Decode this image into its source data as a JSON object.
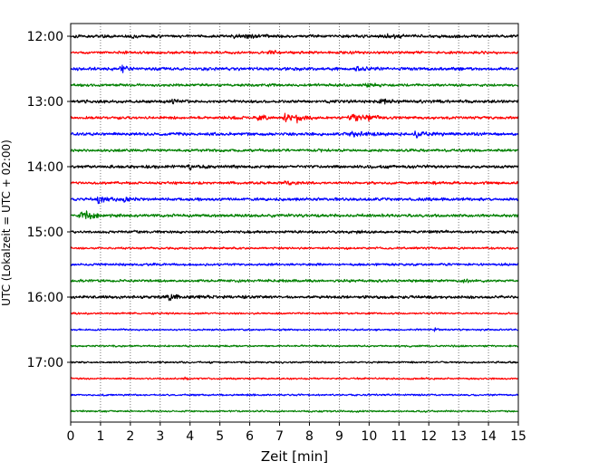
{
  "chart_data": {
    "type": "line",
    "subtype": "helicorder",
    "xlabel": "Zeit  [min]",
    "ylabel": "UTC (Lokalzeit = UTC + 02:00)",
    "xlim": [
      0,
      15
    ],
    "x_ticks": [
      "0",
      "1",
      "2",
      "3",
      "4",
      "5",
      "6",
      "7",
      "8",
      "9",
      "10",
      "11",
      "12",
      "13",
      "14",
      "15"
    ],
    "y_ticks": [
      "12:00",
      "13:00",
      "14:00",
      "15:00",
      "16:00",
      "17:00"
    ],
    "grid": "vertical dotted at each minute",
    "colors": [
      "#000000",
      "#ff0000",
      "#0000ff",
      "#008000"
    ],
    "trace_interval_minutes": 15,
    "traces": [
      {
        "start": "12:00",
        "color": "#000000",
        "noise": 1.0,
        "events": [
          {
            "t": 2.0,
            "amp": 1.5,
            "dur": 0.2
          },
          {
            "t": 5.6,
            "amp": 2.0,
            "dur": 0.5
          },
          {
            "t": 10.6,
            "amp": 1.5,
            "dur": 0.4
          }
        ]
      },
      {
        "start": "12:15",
        "color": "#ff0000",
        "noise": 0.9,
        "events": [
          {
            "t": 6.6,
            "amp": 1.3,
            "dur": 0.3
          }
        ]
      },
      {
        "start": "12:30",
        "color": "#0000ff",
        "noise": 1.0,
        "events": [
          {
            "t": 1.7,
            "amp": 2.2,
            "dur": 0.3
          },
          {
            "t": 9.6,
            "amp": 1.3,
            "dur": 0.3
          }
        ]
      },
      {
        "start": "12:45",
        "color": "#008000",
        "noise": 0.9,
        "events": [
          {
            "t": 10.0,
            "amp": 1.2,
            "dur": 0.3
          }
        ]
      },
      {
        "start": "13:00",
        "color": "#000000",
        "noise": 1.0,
        "events": [
          {
            "t": 10.4,
            "amp": 2.0,
            "dur": 0.3
          },
          {
            "t": 3.4,
            "amp": 1.3,
            "dur": 0.3
          }
        ]
      },
      {
        "start": "13:15",
        "color": "#ff0000",
        "noise": 0.9,
        "events": [
          {
            "t": 6.3,
            "amp": 2.5,
            "dur": 0.25
          },
          {
            "t": 7.2,
            "amp": 3.5,
            "dur": 0.35
          },
          {
            "t": 7.6,
            "amp": 3.0,
            "dur": 0.2
          },
          {
            "t": 9.4,
            "amp": 3.5,
            "dur": 0.35
          },
          {
            "t": 10.0,
            "amp": 2.2,
            "dur": 0.3
          }
        ]
      },
      {
        "start": "13:30",
        "color": "#0000ff",
        "noise": 1.0,
        "events": [
          {
            "t": 9.5,
            "amp": 1.8,
            "dur": 0.5
          },
          {
            "t": 11.6,
            "amp": 1.8,
            "dur": 0.5
          }
        ]
      },
      {
        "start": "13:45",
        "color": "#008000",
        "noise": 0.9,
        "events": []
      },
      {
        "start": "14:00",
        "color": "#000000",
        "noise": 1.0,
        "events": [
          {
            "t": 4.0,
            "amp": 1.3,
            "dur": 0.3
          }
        ]
      },
      {
        "start": "14:15",
        "color": "#ff0000",
        "noise": 0.9,
        "events": [
          {
            "t": 7.2,
            "amp": 1.2,
            "dur": 0.3
          }
        ]
      },
      {
        "start": "14:30",
        "color": "#0000ff",
        "noise": 1.0,
        "events": [
          {
            "t": 0.9,
            "amp": 3.5,
            "dur": 0.35
          },
          {
            "t": 1.8,
            "amp": 1.4,
            "dur": 0.3
          }
        ]
      },
      {
        "start": "14:45",
        "color": "#008000",
        "noise": 1.0,
        "events": [
          {
            "t": 0.4,
            "amp": 4.0,
            "dur": 0.45
          }
        ]
      },
      {
        "start": "15:00",
        "color": "#000000",
        "noise": 0.9,
        "events": [
          {
            "t": 9.6,
            "amp": 2.0,
            "dur": 0.15
          }
        ]
      },
      {
        "start": "15:15",
        "color": "#ff0000",
        "noise": 0.7,
        "events": []
      },
      {
        "start": "15:30",
        "color": "#0000ff",
        "noise": 0.8,
        "events": []
      },
      {
        "start": "15:45",
        "color": "#008000",
        "noise": 0.9,
        "events": [
          {
            "t": 13.2,
            "amp": 1.3,
            "dur": 0.3
          }
        ]
      },
      {
        "start": "16:00",
        "color": "#000000",
        "noise": 1.0,
        "events": [
          {
            "t": 3.3,
            "amp": 1.6,
            "dur": 0.6
          }
        ]
      },
      {
        "start": "16:15",
        "color": "#ff0000",
        "noise": 0.6,
        "events": []
      },
      {
        "start": "16:30",
        "color": "#0000ff",
        "noise": 0.6,
        "events": [
          {
            "t": 12.2,
            "amp": 1.5,
            "dur": 0.1
          }
        ]
      },
      {
        "start": "16:45",
        "color": "#008000",
        "noise": 0.6,
        "events": []
      },
      {
        "start": "17:00",
        "color": "#000000",
        "noise": 0.6,
        "events": []
      },
      {
        "start": "17:15",
        "color": "#ff0000",
        "noise": 0.6,
        "events": [
          {
            "t": 3.8,
            "amp": 1.3,
            "dur": 0.1
          }
        ]
      },
      {
        "start": "17:30",
        "color": "#0000ff",
        "noise": 0.6,
        "events": []
      },
      {
        "start": "17:45",
        "color": "#008000",
        "noise": 0.6,
        "events": []
      }
    ]
  }
}
